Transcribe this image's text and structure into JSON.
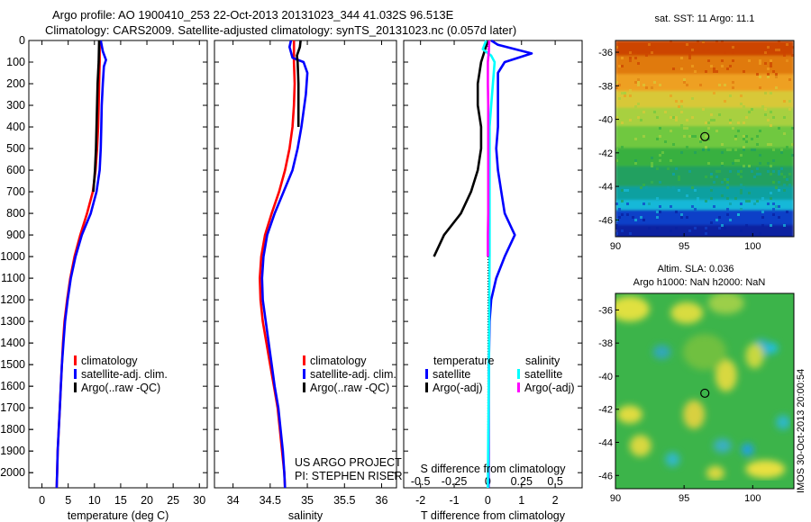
{
  "header": {
    "title_line1": "Argo profile: AO 1900410_253 22-Oct-2013 20131023_344 41.032S 96.513E",
    "title_line2": "Climatology: CARS2009. Satellite-adjusted climatology: synTS_20131023.nc (0.057d later)"
  },
  "colors": {
    "climatology": "#ff0000",
    "satellite": "#0000ff",
    "argo": "#000000",
    "salinity_satellite": "#00ffff",
    "salinity_argo": "#ff00ff"
  },
  "chart_data": [
    {
      "id": "temperature",
      "type": "line",
      "xlabel": "temperature (deg C)",
      "xlim": [
        -2.5,
        31.5
      ],
      "xticks": [
        0,
        5,
        10,
        15,
        20,
        25,
        30
      ],
      "xtick_labels": [
        "0",
        "5",
        "10",
        "15",
        "20",
        "25",
        "30"
      ],
      "ylim": [
        2070,
        0
      ],
      "yticks": [
        0,
        100,
        200,
        300,
        400,
        500,
        600,
        700,
        800,
        900,
        1000,
        1100,
        1200,
        1300,
        1400,
        1500,
        1600,
        1700,
        1800,
        1900,
        2000
      ],
      "ytick_labels": [
        "0",
        "100",
        "200",
        "300",
        "400",
        "500",
        "600",
        "700",
        "800",
        "900",
        "1000",
        "1100",
        "1200",
        "1300",
        "1400",
        "1500",
        "1600",
        "1700",
        "1800",
        "1900",
        "2000"
      ],
      "legend": [
        "climatology",
        "satellite-adj. clim.",
        "Argo(..raw -QC)"
      ],
      "legend_position": "lower-center",
      "series": [
        {
          "name": "climatology",
          "color_key": "climatology",
          "points": [
            [
              11.0,
              0
            ],
            [
              11.0,
              100
            ],
            [
              10.9,
              200
            ],
            [
              10.8,
              300
            ],
            [
              10.7,
              400
            ],
            [
              10.5,
              500
            ],
            [
              10.2,
              600
            ],
            [
              9.7,
              700
            ],
            [
              8.6,
              800
            ],
            [
              7.3,
              900
            ],
            [
              6.2,
              1000
            ],
            [
              5.4,
              1100
            ],
            [
              4.8,
              1200
            ],
            [
              4.3,
              1300
            ],
            [
              4.0,
              1400
            ],
            [
              3.8,
              1500
            ],
            [
              3.6,
              1600
            ],
            [
              3.4,
              1700
            ],
            [
              3.2,
              1800
            ],
            [
              3.0,
              1900
            ],
            [
              2.9,
              2000
            ],
            [
              2.8,
              2070
            ]
          ]
        },
        {
          "name": "satellite-adj. clim.",
          "color_key": "satellite",
          "points": [
            [
              11.2,
              0
            ],
            [
              11.6,
              50
            ],
            [
              12.2,
              90
            ],
            [
              11.8,
              120
            ],
            [
              11.6,
              200
            ],
            [
              11.4,
              300
            ],
            [
              11.3,
              400
            ],
            [
              11.2,
              500
            ],
            [
              11.0,
              600
            ],
            [
              10.4,
              700
            ],
            [
              9.3,
              800
            ],
            [
              7.6,
              900
            ],
            [
              6.4,
              1000
            ],
            [
              5.5,
              1100
            ],
            [
              4.9,
              1200
            ],
            [
              4.4,
              1300
            ],
            [
              4.1,
              1400
            ],
            [
              3.8,
              1500
            ],
            [
              3.6,
              1600
            ],
            [
              3.4,
              1700
            ],
            [
              3.2,
              1800
            ],
            [
              3.0,
              1900
            ],
            [
              2.9,
              2000
            ],
            [
              2.8,
              2070
            ]
          ]
        },
        {
          "name": "Argo(..raw -QC)",
          "color_key": "argo",
          "points": [
            [
              10.9,
              0
            ],
            [
              10.8,
              100
            ],
            [
              10.6,
              200
            ],
            [
              10.5,
              300
            ],
            [
              10.4,
              400
            ],
            [
              10.3,
              500
            ],
            [
              10.1,
              600
            ],
            [
              9.8,
              700
            ]
          ]
        }
      ]
    },
    {
      "id": "salinity",
      "type": "line",
      "xlabel": "salinity",
      "xlim": [
        33.75,
        36.2
      ],
      "xticks": [
        34,
        34.5,
        35,
        35.5,
        36
      ],
      "xtick_labels": [
        "34",
        "34.5",
        "35",
        "35.5",
        "36"
      ],
      "ylim": [
        2070,
        0
      ],
      "legend": [
        "climatology",
        "satellite-adj. clim.",
        "Argo(..raw -QC)"
      ],
      "legend_position": "lower-center",
      "annotations": [
        "US ARGO PROJECT",
        "PI: STEPHEN RISER"
      ],
      "series": [
        {
          "name": "climatology",
          "color_key": "climatology",
          "points": [
            [
              34.82,
              0
            ],
            [
              34.82,
              100
            ],
            [
              34.83,
              200
            ],
            [
              34.82,
              300
            ],
            [
              34.8,
              400
            ],
            [
              34.76,
              500
            ],
            [
              34.7,
              600
            ],
            [
              34.62,
              700
            ],
            [
              34.52,
              800
            ],
            [
              34.43,
              900
            ],
            [
              34.38,
              1000
            ],
            [
              34.36,
              1100
            ],
            [
              34.37,
              1200
            ],
            [
              34.4,
              1300
            ],
            [
              34.45,
              1400
            ],
            [
              34.5,
              1500
            ],
            [
              34.55,
              1600
            ],
            [
              34.6,
              1700
            ],
            [
              34.63,
              1800
            ],
            [
              34.66,
              1900
            ],
            [
              34.69,
              2000
            ],
            [
              34.7,
              2070
            ]
          ]
        },
        {
          "name": "satellite-adj. clim.",
          "color_key": "satellite",
          "points": [
            [
              34.78,
              0
            ],
            [
              34.76,
              30
            ],
            [
              34.8,
              80
            ],
            [
              34.95,
              100
            ],
            [
              35.0,
              150
            ],
            [
              34.98,
              250
            ],
            [
              34.92,
              400
            ],
            [
              34.87,
              500
            ],
            [
              34.8,
              600
            ],
            [
              34.68,
              700
            ],
            [
              34.56,
              800
            ],
            [
              34.46,
              900
            ],
            [
              34.41,
              1000
            ],
            [
              34.39,
              1100
            ],
            [
              34.4,
              1200
            ],
            [
              34.44,
              1300
            ],
            [
              34.48,
              1400
            ],
            [
              34.52,
              1500
            ],
            [
              34.56,
              1600
            ],
            [
              34.61,
              1700
            ],
            [
              34.64,
              1800
            ],
            [
              34.67,
              1900
            ],
            [
              34.69,
              2000
            ],
            [
              34.7,
              2070
            ]
          ]
        },
        {
          "name": "Argo(..raw -QC)",
          "color_key": "argo",
          "points": [
            [
              34.91,
              0
            ],
            [
              34.9,
              30
            ],
            [
              34.86,
              70
            ],
            [
              34.87,
              100
            ],
            [
              34.88,
              200
            ],
            [
              34.88,
              300
            ],
            [
              34.88,
              400
            ]
          ]
        }
      ]
    },
    {
      "id": "difference",
      "type": "line",
      "xlabel": "T difference from climatology",
      "xlabel_top": "S difference from climatology",
      "xlim": [
        -2.5,
        2.8
      ],
      "xticks": [
        -2,
        -1,
        0,
        1,
        2
      ],
      "xtick_labels": [
        "-2",
        "-1",
        "0",
        "1",
        "2"
      ],
      "xticks_top": [
        -2,
        -1,
        0,
        1,
        2
      ],
      "xtick_labels_top": [
        "-0.5",
        "-0.25",
        "0",
        "0.25",
        "0.5"
      ],
      "ylim": [
        2070,
        0
      ],
      "zero_line": true,
      "legend_groups": [
        {
          "title": "temperature",
          "entries": [
            {
              "label": "satellite",
              "color_key": "satellite"
            },
            {
              "label": "Argo(-adj)",
              "color_key": "argo"
            }
          ]
        },
        {
          "title": "salinity",
          "entries": [
            {
              "label": "satellite",
              "color_key": "salinity_satellite"
            },
            {
              "label": "Argo(-adj)",
              "color_key": "salinity_argo"
            }
          ]
        }
      ],
      "series": [
        {
          "name": "temperature satellite",
          "color_key": "satellite",
          "points": [
            [
              0.1,
              0
            ],
            [
              0.3,
              20
            ],
            [
              1.3,
              60
            ],
            [
              0.5,
              100
            ],
            [
              0.3,
              150
            ],
            [
              0.3,
              300
            ],
            [
              0.3,
              400
            ],
            [
              0.25,
              500
            ],
            [
              0.3,
              600
            ],
            [
              0.4,
              700
            ],
            [
              0.5,
              800
            ],
            [
              0.8,
              900
            ],
            [
              0.5,
              1000
            ],
            [
              0.25,
              1100
            ],
            [
              0.1,
              1200
            ],
            [
              0.05,
              1300
            ],
            [
              0.03,
              1500
            ],
            [
              0.02,
              2070
            ]
          ]
        },
        {
          "name": "temperature Argo(-adj)",
          "color_key": "argo",
          "points": [
            [
              0,
              0
            ],
            [
              -0.1,
              50
            ],
            [
              -0.2,
              100
            ],
            [
              -0.3,
              200
            ],
            [
              -0.3,
              300
            ],
            [
              -0.2,
              400
            ],
            [
              -0.2,
              500
            ],
            [
              -0.3,
              600
            ],
            [
              -0.5,
              700
            ],
            [
              -0.8,
              800
            ],
            [
              -1.3,
              900
            ],
            [
              -1.6,
              1000
            ]
          ]
        },
        {
          "name": "salinity satellite",
          "color_key": "salinity_satellite",
          "points": [
            [
              -0.05,
              0
            ],
            [
              -0.15,
              40
            ],
            [
              0.1,
              70
            ],
            [
              0.2,
              100
            ],
            [
              0.15,
              200
            ],
            [
              0.1,
              300
            ],
            [
              0.05,
              400
            ],
            [
              0.05,
              700
            ],
            [
              0.05,
              1000
            ],
            [
              0.03,
              1500
            ],
            [
              0,
              2070
            ]
          ]
        },
        {
          "name": "salinity Argo(-adj)",
          "color_key": "salinity_argo",
          "points": [
            [
              0.04,
              0
            ],
            [
              0.03,
              50
            ],
            [
              0.0,
              100
            ],
            [
              0.0,
              200
            ],
            [
              0.01,
              300
            ],
            [
              0.01,
              400
            ],
            [
              0.01,
              500
            ],
            [
              0.01,
              600
            ],
            [
              0.01,
              700
            ],
            [
              0.01,
              800
            ],
            [
              0.0,
              900
            ],
            [
              0.0,
              1000
            ]
          ]
        }
      ]
    },
    {
      "id": "sst-map",
      "type": "heatmap",
      "title": "sat. SST: 11 Argo: 11.1",
      "xlim": [
        90,
        103
      ],
      "ylim": [
        -47,
        -35.3
      ],
      "xticks": [
        90,
        95,
        100
      ],
      "xtick_labels": [
        "90",
        "95",
        "100"
      ],
      "yticks": [
        -36,
        -38,
        -40,
        -42,
        -44,
        -46
      ],
      "ytick_labels": [
        "-36",
        "-38",
        "-40",
        "-42",
        "-44",
        "-46"
      ],
      "marker": {
        "lon": 96.513,
        "lat": -41.032
      },
      "bands": [
        [
          -35.3,
          "#cc4400"
        ],
        [
          -36.2,
          "#e07a10"
        ],
        [
          -37.3,
          "#eea020"
        ],
        [
          -38.3,
          "#d8c838"
        ],
        [
          -39.3,
          "#a8d040"
        ],
        [
          -40.4,
          "#70c840"
        ],
        [
          -41.7,
          "#38b040"
        ],
        [
          -42.8,
          "#20a060"
        ],
        [
          -44.0,
          "#10a0a0"
        ],
        [
          -44.8,
          "#18b8d8"
        ],
        [
          -45.4,
          "#1040c8"
        ],
        [
          -46.3,
          "#0820a0"
        ]
      ]
    },
    {
      "id": "sla-map",
      "type": "heatmap",
      "title_line1": "Altim. SLA: 0.036",
      "title_line2": "Argo h1000: NaN h2000: NaN",
      "xlim": [
        90,
        103
      ],
      "ylim": [
        -46.8,
        -35.0
      ],
      "xticks": [
        90,
        95,
        100
      ],
      "xtick_labels": [
        "90",
        "95",
        "100"
      ],
      "yticks": [
        -36,
        -38,
        -40,
        -42,
        -44,
        -46
      ],
      "ytick_labels": [
        "-36",
        "-38",
        "-40",
        "-42",
        "-44",
        "-46"
      ],
      "marker": {
        "lon": 96.513,
        "lat": -41.032
      },
      "base_color": "#3cb44a"
    }
  ],
  "footer": {
    "credit": "IMOS 30-Oct-2013 20:00:54"
  }
}
